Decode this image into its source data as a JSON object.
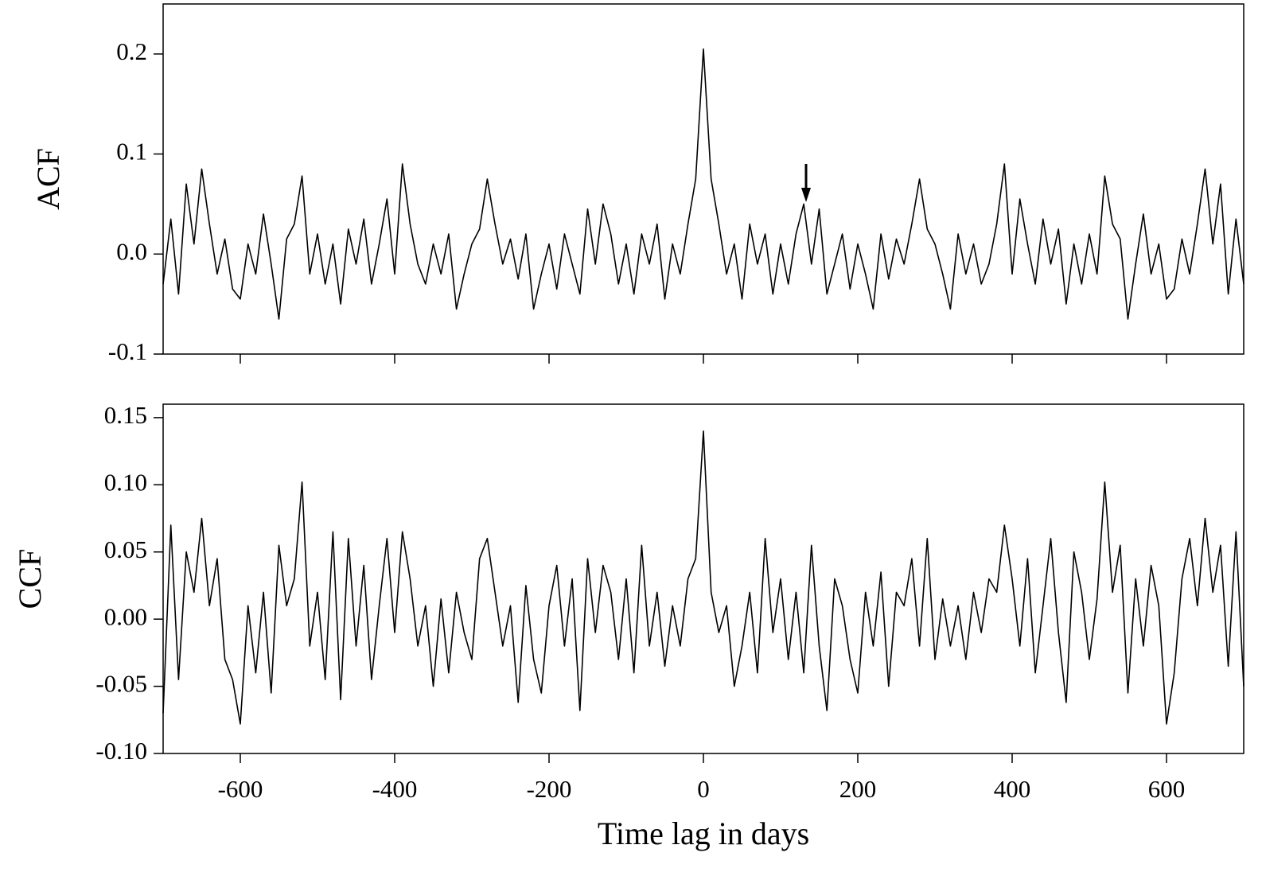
{
  "chart_data": [
    {
      "type": "line",
      "ylabel": "ACF",
      "color": "#000000",
      "x": [
        -700,
        -690,
        -680,
        -670,
        -660,
        -650,
        -640,
        -630,
        -620,
        -610,
        -600,
        -590,
        -580,
        -570,
        -560,
        -550,
        -540,
        -530,
        -520,
        -510,
        -500,
        -490,
        -480,
        -470,
        -460,
        -450,
        -440,
        -430,
        -420,
        -410,
        -400,
        -390,
        -380,
        -370,
        -360,
        -350,
        -340,
        -330,
        -320,
        -310,
        -300,
        -290,
        -280,
        -270,
        -260,
        -250,
        -240,
        -230,
        -220,
        -210,
        -200,
        -190,
        -180,
        -170,
        -160,
        -150,
        -140,
        -130,
        -120,
        -110,
        -100,
        -90,
        -80,
        -70,
        -60,
        -50,
        -40,
        -30,
        -20,
        -10,
        0,
        10,
        20,
        30,
        40,
        50,
        60,
        70,
        80,
        90,
        100,
        110,
        120,
        130,
        140,
        150,
        160,
        170,
        180,
        190,
        200,
        210,
        220,
        230,
        240,
        250,
        260,
        270,
        280,
        290,
        300,
        310,
        320,
        330,
        340,
        350,
        360,
        370,
        380,
        390,
        400,
        410,
        420,
        430,
        440,
        450,
        460,
        470,
        480,
        490,
        500,
        510,
        520,
        530,
        540,
        550,
        560,
        570,
        580,
        590,
        600,
        610,
        620,
        630,
        640,
        650,
        660,
        670,
        680,
        690,
        700
      ],
      "values": [
        -0.03,
        0.035,
        -0.04,
        0.07,
        0.01,
        0.085,
        0.03,
        -0.02,
        0.015,
        -0.035,
        -0.045,
        0.01,
        -0.02,
        0.04,
        -0.01,
        -0.065,
        0.015,
        0.03,
        0.078,
        -0.02,
        0.02,
        -0.03,
        0.01,
        -0.05,
        0.025,
        -0.01,
        0.035,
        -0.03,
        0.01,
        0.055,
        -0.02,
        0.09,
        0.03,
        -0.01,
        -0.03,
        0.01,
        -0.02,
        0.02,
        -0.055,
        -0.02,
        0.01,
        0.025,
        0.075,
        0.03,
        -0.01,
        0.015,
        -0.025,
        0.02,
        -0.055,
        -0.02,
        0.01,
        -0.035,
        0.02,
        -0.01,
        -0.04,
        0.045,
        -0.01,
        0.05,
        0.02,
        -0.03,
        0.01,
        -0.04,
        0.02,
        -0.01,
        0.03,
        -0.045,
        0.01,
        -0.02,
        0.03,
        0.075,
        0.205,
        0.075,
        0.03,
        -0.02,
        0.01,
        -0.045,
        0.03,
        -0.01,
        0.02,
        -0.04,
        0.01,
        -0.03,
        0.02,
        0.05,
        -0.01,
        0.045,
        -0.04,
        -0.01,
        0.02,
        -0.035,
        0.01,
        -0.02,
        -0.055,
        0.02,
        -0.025,
        0.015,
        -0.01,
        0.03,
        0.075,
        0.025,
        0.01,
        -0.02,
        -0.055,
        0.02,
        -0.02,
        0.01,
        -0.03,
        -0.01,
        0.03,
        0.09,
        -0.02,
        0.055,
        0.01,
        -0.03,
        0.035,
        -0.01,
        0.025,
        -0.05,
        0.01,
        -0.03,
        0.02,
        -0.02,
        0.078,
        0.03,
        0.015,
        -0.065,
        -0.01,
        0.04,
        -0.02,
        0.01,
        -0.045,
        -0.035,
        0.015,
        -0.02,
        0.03,
        0.085,
        0.01,
        0.07,
        -0.04,
        0.035,
        -0.03
      ],
      "xlim": [
        -700,
        700
      ],
      "xticks": [
        -600,
        -400,
        -200,
        0,
        200,
        400,
        600
      ],
      "show_xtick_labels": false,
      "ylim": [
        -0.1,
        0.25
      ],
      "yticks": [
        -0.1,
        {
          "value": 0,
          "label": "0.0"
        },
        0.1,
        0.2
      ]
    },
    {
      "type": "line",
      "ylabel": "CCF",
      "xlabel": "Time lag  in days",
      "color": "#000000",
      "x": [
        -700,
        -690,
        -680,
        -670,
        -660,
        -650,
        -640,
        -630,
        -620,
        -610,
        -600,
        -590,
        -580,
        -570,
        -560,
        -550,
        -540,
        -530,
        -520,
        -510,
        -500,
        -490,
        -480,
        -470,
        -460,
        -450,
        -440,
        -430,
        -420,
        -410,
        -400,
        -390,
        -380,
        -370,
        -360,
        -350,
        -340,
        -330,
        -320,
        -310,
        -300,
        -290,
        -280,
        -270,
        -260,
        -250,
        -240,
        -230,
        -220,
        -210,
        -200,
        -190,
        -180,
        -170,
        -160,
        -150,
        -140,
        -130,
        -120,
        -110,
        -100,
        -90,
        -80,
        -70,
        -60,
        -50,
        -40,
        -30,
        -20,
        -10,
        0,
        10,
        20,
        30,
        40,
        50,
        60,
        70,
        80,
        90,
        100,
        110,
        120,
        130,
        140,
        150,
        160,
        170,
        180,
        190,
        200,
        210,
        220,
        230,
        240,
        250,
        260,
        270,
        280,
        290,
        300,
        310,
        320,
        330,
        340,
        350,
        360,
        370,
        380,
        390,
        400,
        410,
        420,
        430,
        440,
        450,
        460,
        470,
        480,
        490,
        500,
        510,
        520,
        530,
        540,
        550,
        560,
        570,
        580,
        590,
        600,
        610,
        620,
        630,
        640,
        650,
        660,
        670,
        680,
        690,
        700
      ],
      "values": [
        -0.07,
        0.07,
        -0.045,
        0.05,
        0.02,
        0.075,
        0.01,
        0.045,
        -0.03,
        -0.045,
        -0.078,
        0.01,
        -0.04,
        0.02,
        -0.055,
        0.055,
        0.01,
        0.03,
        0.102,
        -0.02,
        0.02,
        -0.045,
        0.065,
        -0.06,
        0.06,
        -0.02,
        0.04,
        -0.045,
        0.01,
        0.06,
        -0.01,
        0.065,
        0.03,
        -0.02,
        0.01,
        -0.05,
        0.015,
        -0.04,
        0.02,
        -0.01,
        -0.03,
        0.045,
        0.06,
        0.02,
        -0.02,
        0.01,
        -0.062,
        0.025,
        -0.03,
        -0.055,
        0.01,
        0.04,
        -0.02,
        0.03,
        -0.068,
        0.045,
        -0.01,
        0.04,
        0.02,
        -0.03,
        0.03,
        -0.04,
        0.055,
        -0.02,
        0.02,
        -0.035,
        0.01,
        -0.02,
        0.03,
        0.045,
        0.14,
        0.02,
        -0.01,
        0.01,
        -0.05,
        -0.02,
        0.02,
        -0.04,
        0.06,
        -0.01,
        0.03,
        -0.03,
        0.02,
        -0.04,
        0.055,
        -0.02,
        -0.068,
        0.03,
        0.01,
        -0.03,
        -0.055,
        0.02,
        -0.02,
        0.035,
        -0.05,
        0.02,
        0.01,
        0.045,
        -0.02,
        0.06,
        -0.03,
        0.015,
        -0.02,
        0.01,
        -0.03,
        0.02,
        -0.01,
        0.03,
        0.02,
        0.07,
        0.03,
        -0.02,
        0.045,
        -0.04,
        0.01,
        0.06,
        -0.01,
        -0.062,
        0.05,
        0.02,
        -0.03,
        0.015,
        0.102,
        0.02,
        0.055,
        -0.055,
        0.03,
        -0.02,
        0.04,
        0.01,
        -0.078,
        -0.04,
        0.03,
        0.06,
        0.01,
        0.075,
        0.02,
        0.055,
        -0.035,
        0.065,
        -0.05
      ],
      "xlim": [
        -700,
        700
      ],
      "xticks": [
        -600,
        -400,
        -200,
        0,
        200,
        400,
        600
      ],
      "show_xtick_labels": true,
      "ylim": [
        -0.1,
        0.16
      ],
      "yticks": [
        {
          "value": -0.1,
          "label": "-0.10"
        },
        -0.05,
        {
          "value": 0,
          "label": "0.00"
        },
        0.05,
        {
          "value": 0.1,
          "label": "0.10"
        },
        0.15
      ]
    }
  ]
}
